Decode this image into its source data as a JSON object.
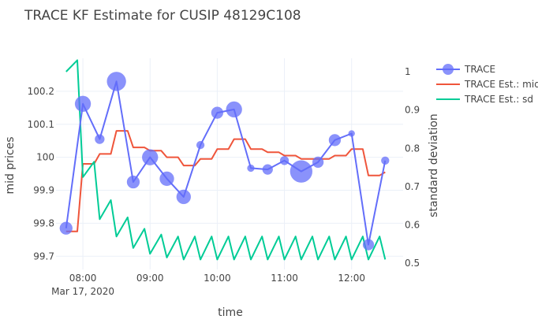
{
  "chart_data": {
    "type": "line",
    "title": "TRACE KF Estimate for CUSIP 48129C108",
    "xlabel": "time",
    "ylabel_left": "mid prices",
    "ylabel_right": "standard deviation",
    "x_range": [
      "07:36",
      "12:46"
    ],
    "x_ticks": [
      {
        "t": "08:00",
        "label": "08:00",
        "sublabel": "Mar 17, 2020"
      },
      {
        "t": "09:00",
        "label": "09:00",
        "sublabel": ""
      },
      {
        "t": "10:00",
        "label": "10:00",
        "sublabel": ""
      },
      {
        "t": "11:00",
        "label": "11:00",
        "sublabel": ""
      },
      {
        "t": "12:00",
        "label": "12:00",
        "sublabel": ""
      }
    ],
    "y_left": {
      "range": [
        99.66,
        100.3
      ],
      "ticks": [
        99.7,
        99.8,
        99.9,
        100,
        100.1,
        100.2
      ],
      "tick_labels": [
        "99.7",
        "99.8",
        "99.9",
        "100",
        "100.1",
        "100.2"
      ]
    },
    "y_right": {
      "range": [
        0.484,
        1.035
      ],
      "ticks": [
        0.5,
        0.6,
        0.7,
        0.8,
        0.9,
        1.0
      ],
      "tick_labels": [
        "0.5",
        "0.6",
        "0.7",
        "0.8",
        "0.9",
        "1"
      ]
    },
    "grid": true,
    "legend_position": "top-right",
    "series": [
      {
        "name": "TRACE",
        "mode": "lines+markers",
        "axis": "left",
        "color": "#636efa",
        "points": [
          {
            "t": "07:45",
            "y": 99.785,
            "size": 16
          },
          {
            "t": "08:00",
            "y": 100.162,
            "size": 20
          },
          {
            "t": "08:15",
            "y": 100.055,
            "size": 12
          },
          {
            "t": "08:30",
            "y": 100.23,
            "size": 24
          },
          {
            "t": "08:45",
            "y": 99.925,
            "size": 16
          },
          {
            "t": "09:00",
            "y": 100.0,
            "size": 20
          },
          {
            "t": "09:15",
            "y": 99.935,
            "size": 18
          },
          {
            "t": "09:30",
            "y": 99.88,
            "size": 18
          },
          {
            "t": "09:45",
            "y": 100.037,
            "size": 10
          },
          {
            "t": "10:00",
            "y": 100.135,
            "size": 15
          },
          {
            "t": "10:15",
            "y": 100.145,
            "size": 20
          },
          {
            "t": "10:30",
            "y": 99.967,
            "size": 9
          },
          {
            "t": "10:45",
            "y": 99.963,
            "size": 13
          },
          {
            "t": "11:00",
            "y": 99.99,
            "size": 11
          },
          {
            "t": "11:15",
            "y": 99.957,
            "size": 28
          },
          {
            "t": "11:30",
            "y": 99.985,
            "size": 14
          },
          {
            "t": "11:45",
            "y": 100.052,
            "size": 15
          },
          {
            "t": "12:00",
            "y": 100.072,
            "size": 8
          },
          {
            "t": "12:15",
            "y": 99.735,
            "size": 14
          },
          {
            "t": "12:30",
            "y": 99.99,
            "size": 10
          }
        ]
      },
      {
        "name": "TRACE Est.: mid",
        "mode": "lines",
        "axis": "left",
        "color": "#ef553b",
        "points": [
          {
            "t": "07:45",
            "y": 99.775
          },
          {
            "t": "07:55",
            "y": 99.775
          },
          {
            "t": "08:00",
            "y": 99.98
          },
          {
            "t": "08:10",
            "y": 99.98
          },
          {
            "t": "08:15",
            "y": 100.01
          },
          {
            "t": "08:25",
            "y": 100.01
          },
          {
            "t": "08:30",
            "y": 100.08
          },
          {
            "t": "08:40",
            "y": 100.08
          },
          {
            "t": "08:45",
            "y": 100.03
          },
          {
            "t": "08:55",
            "y": 100.03
          },
          {
            "t": "09:00",
            "y": 100.02
          },
          {
            "t": "09:10",
            "y": 100.02
          },
          {
            "t": "09:15",
            "y": 100.0
          },
          {
            "t": "09:25",
            "y": 100.0
          },
          {
            "t": "09:30",
            "y": 99.975
          },
          {
            "t": "09:40",
            "y": 99.975
          },
          {
            "t": "09:45",
            "y": 99.995
          },
          {
            "t": "09:55",
            "y": 99.995
          },
          {
            "t": "10:00",
            "y": 100.025
          },
          {
            "t": "10:10",
            "y": 100.025
          },
          {
            "t": "10:15",
            "y": 100.055
          },
          {
            "t": "10:25",
            "y": 100.055
          },
          {
            "t": "10:30",
            "y": 100.025
          },
          {
            "t": "10:40",
            "y": 100.025
          },
          {
            "t": "10:45",
            "y": 100.015
          },
          {
            "t": "10:55",
            "y": 100.015
          },
          {
            "t": "11:00",
            "y": 100.005
          },
          {
            "t": "11:10",
            "y": 100.005
          },
          {
            "t": "11:15",
            "y": 99.995
          },
          {
            "t": "11:25",
            "y": 99.995
          },
          {
            "t": "11:30",
            "y": 99.995
          },
          {
            "t": "11:40",
            "y": 99.995
          },
          {
            "t": "11:45",
            "y": 100.005
          },
          {
            "t": "11:55",
            "y": 100.005
          },
          {
            "t": "12:00",
            "y": 100.025
          },
          {
            "t": "12:10",
            "y": 100.025
          },
          {
            "t": "12:15",
            "y": 99.945
          },
          {
            "t": "12:25",
            "y": 99.945
          },
          {
            "t": "12:30",
            "y": 99.955
          }
        ]
      },
      {
        "name": "TRACE Est.: sd",
        "mode": "lines",
        "axis": "right",
        "color": "#00cc96",
        "points": [
          {
            "t": "07:45",
            "y": 1.0
          },
          {
            "t": "07:55",
            "y": 1.03
          },
          {
            "t": "08:00",
            "y": 0.725
          },
          {
            "t": "08:10",
            "y": 0.765
          },
          {
            "t": "08:15",
            "y": 0.615
          },
          {
            "t": "08:25",
            "y": 0.665
          },
          {
            "t": "08:30",
            "y": 0.57
          },
          {
            "t": "08:40",
            "y": 0.62
          },
          {
            "t": "08:45",
            "y": 0.54
          },
          {
            "t": "08:55",
            "y": 0.59
          },
          {
            "t": "09:00",
            "y": 0.525
          },
          {
            "t": "09:10",
            "y": 0.575
          },
          {
            "t": "09:15",
            "y": 0.515
          },
          {
            "t": "09:25",
            "y": 0.57
          },
          {
            "t": "09:30",
            "y": 0.51
          },
          {
            "t": "09:40",
            "y": 0.57
          },
          {
            "t": "09:45",
            "y": 0.51
          },
          {
            "t": "09:55",
            "y": 0.57
          },
          {
            "t": "10:00",
            "y": 0.51
          },
          {
            "t": "10:10",
            "y": 0.57
          },
          {
            "t": "10:15",
            "y": 0.51
          },
          {
            "t": "10:25",
            "y": 0.57
          },
          {
            "t": "10:30",
            "y": 0.51
          },
          {
            "t": "10:40",
            "y": 0.57
          },
          {
            "t": "10:45",
            "y": 0.51
          },
          {
            "t": "10:55",
            "y": 0.57
          },
          {
            "t": "11:00",
            "y": 0.51
          },
          {
            "t": "11:10",
            "y": 0.57
          },
          {
            "t": "11:15",
            "y": 0.51
          },
          {
            "t": "11:25",
            "y": 0.57
          },
          {
            "t": "11:30",
            "y": 0.51
          },
          {
            "t": "11:40",
            "y": 0.57
          },
          {
            "t": "11:45",
            "y": 0.51
          },
          {
            "t": "11:55",
            "y": 0.57
          },
          {
            "t": "12:00",
            "y": 0.51
          },
          {
            "t": "12:10",
            "y": 0.57
          },
          {
            "t": "12:15",
            "y": 0.51
          },
          {
            "t": "12:25",
            "y": 0.57
          },
          {
            "t": "12:30",
            "y": 0.51
          }
        ]
      }
    ]
  }
}
